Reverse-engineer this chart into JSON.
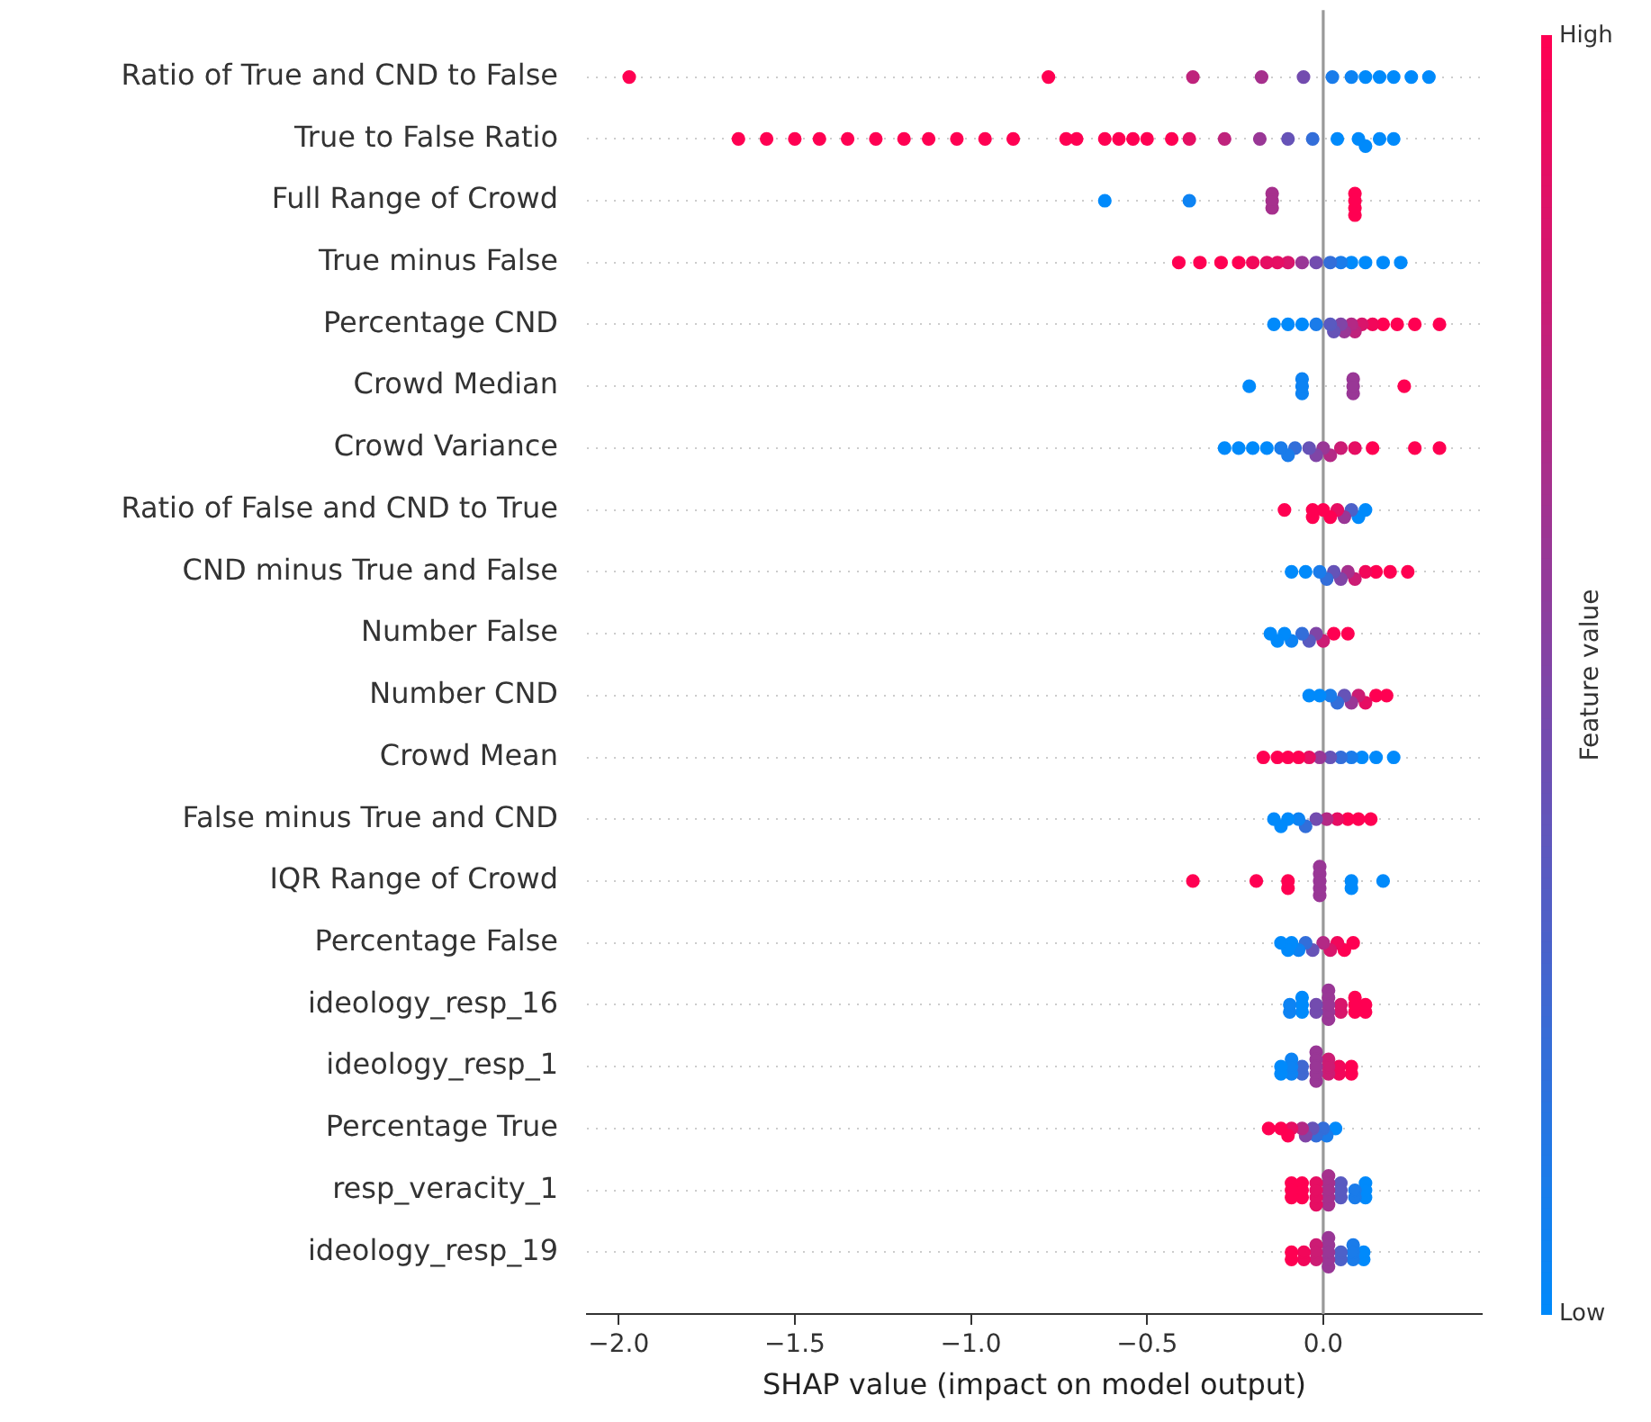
{
  "chart_data": {
    "type": "scatter",
    "orientation": "horizontal",
    "marker": "circle",
    "grid": "y",
    "legend": false,
    "categories": [
      "Ratio of True and CND to False",
      "True to False Ratio",
      "Full Range of Crowd",
      "True minus False",
      "Percentage CND",
      "Crowd Median",
      "Crowd Variance",
      "Ratio of False and CND to True",
      "CND minus True and False",
      "Number False",
      "Number CND",
      "Crowd Mean",
      "False minus True and CND",
      "IQR Range of Crowd",
      "Percentage False",
      "ideology_resp_16",
      "ideology_resp_1",
      "Percentage True",
      "resp_veracity_1",
      "ideology_resp_19"
    ],
    "xlabel": "SHAP value (impact on model output)",
    "clabel": "Feature value",
    "xlim": [
      -2.09,
      0.45
    ],
    "xticks": [
      {
        "value": -2,
        "label": "−2.0"
      },
      {
        "value": -1.5,
        "label": "−1.5"
      },
      {
        "value": -1,
        "label": "−1.0"
      },
      {
        "value": -0.5,
        "label": "−0.5"
      },
      {
        "value": 0,
        "label": "0.0"
      }
    ],
    "clim": [
      0,
      1
    ],
    "cticks": [
      {
        "value": 0,
        "label": "Low"
      },
      {
        "value": 1,
        "label": "High"
      }
    ],
    "ref_lines": [
      {
        "axis": "x",
        "value": 0,
        "color": "#999999"
      }
    ],
    "series": [
      {
        "values": [
          -1.97,
          -1.66,
          -0.62,
          -0.41,
          -0.14,
          -0.21,
          -0.28,
          -0.11,
          -0.09,
          -0.15,
          -0.04,
          -0.17,
          -0.14,
          -0.37,
          -0.12,
          -0.095,
          -0.12,
          -0.155,
          -0.09,
          -0.09
        ],
        "cvalues": [
          1,
          1,
          0,
          1,
          0,
          0,
          0,
          1,
          0,
          0,
          0,
          1,
          0,
          1,
          0,
          0.05,
          0,
          1,
          1,
          1
        ],
        "colors": [
          "#ff0052",
          "#ff0052",
          "#008afb",
          "#ff0052",
          "#008afb",
          "#008afb",
          "#008afb",
          "#ff0052",
          "#008afb",
          "#008afb",
          "#008afb",
          "#ff0052",
          "#008afb",
          "#ff0052",
          "#008afb",
          "#0d83f3",
          "#008afb",
          "#ff0052",
          "#ff0052",
          "#ff0052"
        ]
      },
      {
        "values": [
          -0.78,
          -1.58,
          -0.38,
          -0.35,
          -0.1,
          -0.06,
          -0.24,
          -0.03,
          -0.05,
          -0.13,
          -0.01,
          -0.13,
          -0.12,
          -0.19,
          -0.1,
          -0.095,
          -0.12,
          -0.12,
          -0.09,
          -0.09
        ],
        "cvalues": [
          1,
          1,
          0.05,
          1,
          0,
          0.05,
          0,
          1,
          0,
          0,
          0,
          1,
          0,
          1,
          0,
          0.05,
          0,
          1,
          1,
          1
        ],
        "colors": [
          "#ff0052",
          "#ff0052",
          "#0d83f3",
          "#ff0052",
          "#008afb",
          "#0d83f3",
          "#008afb",
          "#ff0052",
          "#008afb",
          "#008afb",
          "#008afb",
          "#ff0052",
          "#008afb",
          "#ff0052",
          "#008afb",
          "#0d83f3",
          "#008afb",
          "#ff0052",
          "#ff0052",
          "#ff0052"
        ]
      },
      {
        "values": [
          -0.37,
          -1.5,
          -0.145,
          -0.29,
          -0.06,
          -0.06,
          -0.2,
          -0.03,
          -0.01,
          -0.11,
          0.02,
          -0.1,
          -0.1,
          -0.1,
          -0.09,
          -0.06,
          -0.09,
          -0.1,
          -0.09,
          -0.055
        ],
        "cvalues": [
          0.75,
          1,
          0.65,
          1,
          0,
          0.05,
          0,
          1,
          0.1,
          0,
          0.1,
          1,
          0,
          1,
          0,
          0,
          0.05,
          1,
          1,
          0.95
        ],
        "colors": [
          "#bf237c",
          "#ff0052",
          "#a6308d",
          "#ff0052",
          "#008afb",
          "#0d83f3",
          "#008afb",
          "#ff0052",
          "#1a7cea",
          "#008afb",
          "#1a7cea",
          "#ff0052",
          "#008afb",
          "#ff0052",
          "#008afb",
          "#008afb",
          "#0d83f3",
          "#ff0052",
          "#ff0052",
          "#f2075a"
        ]
      },
      {
        "values": [
          -0.175,
          -1.43,
          -0.145,
          -0.24,
          -0.02,
          -0.06,
          -0.16,
          0,
          0.01,
          -0.09,
          0.04,
          -0.07,
          -0.07,
          -0.1,
          -0.07,
          -0.06,
          -0.09,
          -0.09,
          -0.06,
          -0.055
        ],
        "cvalues": [
          0.65,
          1,
          0.65,
          1,
          0.1,
          0.05,
          0,
          1,
          0.2,
          0.05,
          0.2,
          1,
          0.05,
          1,
          0.05,
          0,
          0.05,
          0.9,
          1,
          0.95
        ],
        "colors": [
          "#a6308d",
          "#ff0052",
          "#a6308d",
          "#ff0052",
          "#1a7cea",
          "#0d83f3",
          "#008afb",
          "#ff0052",
          "#336ed9",
          "#0d83f3",
          "#336ed9",
          "#ff0052",
          "#0d83f3",
          "#ff0052",
          "#0d83f3",
          "#008afb",
          "#0d83f3",
          "#e60e63",
          "#ff0052",
          "#f2075a"
        ]
      },
      {
        "values": [
          -0.056,
          -1.35,
          -0.145,
          -0.2,
          0.02,
          0.085,
          -0.12,
          0.02,
          0.03,
          -0.06,
          0.06,
          -0.04,
          -0.05,
          -0.01,
          -0.05,
          -0.06,
          -0.09,
          -0.06,
          -0.06,
          -0.02
        ],
        "cvalues": [
          0.45,
          1,
          0.65,
          0.95,
          0.35,
          0.6,
          0.1,
          1,
          0.4,
          0.2,
          0.4,
          0.9,
          0.2,
          0.6,
          0.2,
          0,
          0.05,
          0.7,
          1,
          0.8
        ],
        "colors": [
          "#734caf",
          "#ff0052",
          "#a6308d",
          "#f2075a",
          "#595ac0",
          "#993796",
          "#1a7cea",
          "#ff0052",
          "#6653b7",
          "#336ed9",
          "#6653b7",
          "#e60e63",
          "#336ed9",
          "#993796",
          "#336ed9",
          "#008afb",
          "#0d83f3",
          "#b32985",
          "#ff0052",
          "#cc1c74"
        ]
      },
      {
        "values": [
          0.026,
          -1.27,
          0.09,
          -0.16,
          0.03,
          0.085,
          -0.1,
          0.04,
          0.05,
          -0.04,
          0.08,
          -0.01,
          -0.02,
          -0.01,
          -0.03,
          -0.02,
          -0.06,
          -0.05,
          -0.06,
          -0.02
        ],
        "cvalues": [
          0.1,
          1,
          1,
          0.9,
          0.4,
          0.6,
          0.1,
          0.9,
          0.5,
          0.35,
          0.6,
          0.6,
          0.45,
          0.6,
          0.4,
          0.45,
          0.25,
          0.5,
          1,
          0.8
        ],
        "colors": [
          "#1a7cea",
          "#ff0052",
          "#ff0052",
          "#e60e63",
          "#6653b7",
          "#993796",
          "#1a7cea",
          "#e60e63",
          "#8045a6",
          "#595ac0",
          "#993796",
          "#993796",
          "#734caf",
          "#993796",
          "#6653b7",
          "#734caf",
          "#4068d1",
          "#8045a6",
          "#ff0052",
          "#cc1c74"
        ]
      },
      {
        "values": [
          0.08,
          -1.19,
          0.09,
          -0.13,
          0.05,
          0.085,
          -0.08,
          0.06,
          0.07,
          -0.02,
          0.1,
          0.02,
          0.01,
          -0.01,
          0,
          -0.02,
          -0.06,
          -0.03,
          -0.02,
          -0.02
        ],
        "cvalues": [
          0.05,
          1,
          1,
          0.9,
          0.5,
          0.6,
          0.2,
          0.6,
          0.65,
          0.5,
          0.8,
          0.4,
          0.7,
          0.6,
          0.7,
          0.45,
          0.25,
          0.4,
          0.9,
          0.8
        ],
        "colors": [
          "#0d83f3",
          "#ff0052",
          "#ff0052",
          "#e60e63",
          "#8045a6",
          "#993796",
          "#336ed9",
          "#993796",
          "#a6308d",
          "#8045a6",
          "#cc1c74",
          "#6653b7",
          "#b32985",
          "#993796",
          "#b32985",
          "#734caf",
          "#4068d1",
          "#6653b7",
          "#e60e63",
          "#cc1c74"
        ]
      },
      {
        "values": [
          0.12,
          -1.12,
          0.09,
          -0.1,
          0.06,
          0.23,
          -0.04,
          0.08,
          0.09,
          0,
          0.12,
          0.05,
          0.04,
          -0.01,
          0.02,
          0.015,
          -0.02,
          -0.02,
          -0.02,
          0.015
        ],
        "cvalues": [
          0,
          1,
          1,
          0.85,
          0.6,
          1,
          0.4,
          0.3,
          0.8,
          0.8,
          0.9,
          0.2,
          0.9,
          0.6,
          0.85,
          0.6,
          0.6,
          0.2,
          0.9,
          0.6
        ],
        "colors": [
          "#008afb",
          "#ff0052",
          "#ff0052",
          "#d9156b",
          "#993796",
          "#ff0052",
          "#6653b7",
          "#4d61c8",
          "#cc1c74",
          "#cc1c74",
          "#e60e63",
          "#336ed9",
          "#e60e63",
          "#993796",
          "#d9156b",
          "#993796",
          "#993796",
          "#336ed9",
          "#e60e63",
          "#993796"
        ]
      },
      {
        "values": [
          0.16,
          -1.04,
          0.09,
          -0.06,
          0.08,
          null,
          -0.02,
          0.1,
          0.12,
          0.03,
          0.15,
          0.08,
          0.07,
          -0.01,
          0.04,
          0.015,
          -0.02,
          0,
          -0.02,
          0.015
        ],
        "cvalues": [
          0,
          1,
          1,
          0.6,
          0.7,
          null,
          0.5,
          0,
          0.95,
          1,
          1,
          0.1,
          1,
          0.6,
          0.95,
          0.6,
          0.6,
          0.2,
          0.9,
          0.6
        ],
        "colors": [
          "#008afb",
          "#ff0052",
          "#ff0052",
          "#993796",
          "#b32985",
          null,
          "#8045a6",
          "#008afb",
          "#f2075a",
          "#ff0052",
          "#ff0052",
          "#1a7cea",
          "#ff0052",
          "#993796",
          "#f2075a",
          "#993796",
          "#993796",
          "#336ed9",
          "#e60e63",
          "#993796"
        ]
      },
      {
        "values": [
          0.2,
          -0.96,
          null,
          -0.02,
          0.09,
          null,
          0,
          0.12,
          0.15,
          0.07,
          0.18,
          0.11,
          0.1,
          0.08,
          0.06,
          0.015,
          -0.02,
          0.01,
          -0.02,
          0.015
        ],
        "cvalues": [
          0,
          1,
          null,
          0.45,
          0.75,
          null,
          0.6,
          0,
          1,
          1,
          1,
          0,
          1,
          0,
          1,
          0.6,
          0.6,
          0.1,
          0.9,
          0.6
        ],
        "colors": [
          "#008afb",
          "#ff0052",
          null,
          "#734caf",
          "#bf237c",
          null,
          "#993796",
          "#008afb",
          "#ff0052",
          "#ff0052",
          "#ff0052",
          "#008afb",
          "#ff0052",
          "#008afb",
          "#ff0052",
          "#993796",
          "#993796",
          "#1a7cea",
          "#e60e63",
          "#993796"
        ]
      },
      {
        "values": [
          0.25,
          -0.88,
          null,
          0.02,
          0.11,
          null,
          0.02,
          null,
          0.19,
          null,
          null,
          0.15,
          0.135,
          0.08,
          0.085,
          0.015,
          -0.02,
          0.035,
          0.015,
          0.015
        ],
        "cvalues": [
          0,
          1,
          null,
          0.2,
          0.85,
          null,
          0.7,
          null,
          1,
          null,
          null,
          0,
          1,
          0,
          1,
          0.6,
          0.6,
          0,
          0.65,
          0.6
        ],
        "colors": [
          "#008afb",
          "#ff0052",
          null,
          "#336ed9",
          "#d9156b",
          null,
          "#b32985",
          null,
          "#ff0052",
          null,
          null,
          "#008afb",
          "#ff0052",
          "#008afb",
          "#ff0052",
          "#993796",
          "#993796",
          "#008afb",
          "#a6308d",
          "#993796"
        ]
      },
      {
        "values": [
          0.3,
          -0.73,
          null,
          0.05,
          0.14,
          null,
          0.05,
          null,
          0.24,
          null,
          null,
          0.2,
          null,
          0.17,
          null,
          0.015,
          -0.02,
          null,
          0.015,
          0.015
        ],
        "cvalues": [
          0,
          1,
          null,
          0.1,
          0.95,
          null,
          0.8,
          null,
          1,
          null,
          null,
          0,
          null,
          0,
          null,
          0.6,
          0.6,
          null,
          0.65,
          0.6
        ],
        "colors": [
          "#008afb",
          "#ff0052",
          null,
          "#1a7cea",
          "#f2075a",
          null,
          "#cc1c74",
          null,
          "#ff0052",
          null,
          null,
          "#008afb",
          null,
          "#008afb",
          null,
          "#993796",
          "#993796",
          null,
          "#a6308d",
          "#993796"
        ]
      },
      {
        "values": [
          null,
          -0.7,
          null,
          0.08,
          0.17,
          null,
          0.09,
          null,
          null,
          null,
          null,
          null,
          null,
          null,
          null,
          0.05,
          0.015,
          null,
          0.015,
          0.05
        ],
        "cvalues": [
          null,
          1,
          null,
          0,
          1,
          null,
          0.9,
          null,
          null,
          null,
          null,
          null,
          null,
          null,
          null,
          0.85,
          0.8,
          null,
          0.65,
          0.3
        ],
        "colors": [
          null,
          "#ff0052",
          null,
          "#008afb",
          "#ff0052",
          null,
          "#e60e63",
          null,
          null,
          null,
          null,
          null,
          null,
          null,
          null,
          "#d9156b",
          "#cc1c74",
          null,
          "#a6308d",
          "#4d61c8"
        ]
      },
      {
        "values": [
          null,
          -0.62,
          null,
          0.12,
          0.21,
          null,
          0.14,
          null,
          null,
          null,
          null,
          null,
          null,
          null,
          null,
          0.05,
          0.015,
          null,
          0.015,
          0.05
        ],
        "cvalues": [
          null,
          1,
          null,
          0,
          1,
          null,
          1,
          null,
          null,
          null,
          null,
          null,
          null,
          null,
          null,
          0.85,
          0.8,
          null,
          0.65,
          0.3
        ],
        "colors": [
          null,
          "#ff0052",
          null,
          "#008afb",
          "#ff0052",
          null,
          "#ff0052",
          null,
          null,
          null,
          null,
          null,
          null,
          null,
          null,
          "#d9156b",
          "#cc1c74",
          null,
          "#a6308d",
          "#4d61c8"
        ]
      },
      {
        "values": [
          null,
          -0.58,
          null,
          0.17,
          0.26,
          null,
          0.26,
          null,
          null,
          null,
          null,
          null,
          null,
          null,
          null,
          0.09,
          0.015,
          null,
          0.015,
          0.085
        ],
        "cvalues": [
          null,
          1,
          null,
          0,
          1,
          null,
          1,
          null,
          null,
          null,
          null,
          null,
          null,
          null,
          null,
          1,
          0.8,
          null,
          0.65,
          0.1
        ],
        "colors": [
          null,
          "#ff0052",
          null,
          "#008afb",
          "#ff0052",
          null,
          "#ff0052",
          null,
          null,
          null,
          null,
          null,
          null,
          null,
          null,
          "#ff0052",
          "#cc1c74",
          null,
          "#a6308d",
          "#1a7cea"
        ]
      },
      {
        "values": [
          null,
          -0.54,
          null,
          0.22,
          0.33,
          null,
          0.33,
          null,
          null,
          null,
          null,
          null,
          null,
          null,
          null,
          0.09,
          0.045,
          null,
          0.05,
          0.085
        ],
        "cvalues": [
          null,
          1,
          null,
          0,
          1,
          null,
          1,
          null,
          null,
          null,
          null,
          null,
          null,
          null,
          null,
          1,
          0.95,
          null,
          0.35,
          0.1
        ],
        "colors": [
          null,
          "#ff0052",
          null,
          "#008afb",
          "#ff0052",
          null,
          "#ff0052",
          null,
          null,
          null,
          null,
          null,
          null,
          null,
          null,
          "#ff0052",
          "#f2075a",
          null,
          "#595ac0",
          "#1a7cea"
        ]
      },
      {
        "values": [
          null,
          -0.5,
          null,
          null,
          null,
          null,
          null,
          null,
          null,
          null,
          null,
          null,
          null,
          null,
          null,
          0.09,
          0.045,
          null,
          0.05,
          0.085
        ],
        "cvalues": [
          null,
          1,
          null,
          null,
          null,
          null,
          null,
          null,
          null,
          null,
          null,
          null,
          null,
          null,
          null,
          1,
          0.95,
          null,
          0.35,
          0.1
        ],
        "colors": [
          null,
          "#ff0052",
          null,
          null,
          null,
          null,
          null,
          null,
          null,
          null,
          null,
          null,
          null,
          null,
          null,
          "#ff0052",
          "#f2075a",
          null,
          "#595ac0",
          "#1a7cea"
        ]
      },
      {
        "values": [
          null,
          -0.43,
          null,
          null,
          null,
          null,
          null,
          null,
          null,
          null,
          null,
          null,
          null,
          null,
          null,
          0.12,
          0.08,
          null,
          0.05,
          0.115
        ],
        "cvalues": [
          null,
          1,
          null,
          null,
          null,
          null,
          null,
          null,
          null,
          null,
          null,
          null,
          null,
          null,
          null,
          1,
          1,
          null,
          0.35,
          0
        ],
        "colors": [
          null,
          "#ff0052",
          null,
          null,
          null,
          null,
          null,
          null,
          null,
          null,
          null,
          null,
          null,
          null,
          null,
          "#ff0052",
          "#ff0052",
          null,
          "#595ac0",
          "#008afb"
        ]
      },
      {
        "values": [
          null,
          -0.38,
          null,
          null,
          null,
          null,
          null,
          null,
          null,
          null,
          null,
          null,
          null,
          null,
          null,
          0.12,
          0.08,
          null,
          0.09,
          0.115
        ],
        "cvalues": [
          null,
          0.9,
          null,
          null,
          null,
          null,
          null,
          null,
          null,
          null,
          null,
          null,
          null,
          null,
          null,
          1,
          1,
          null,
          0.1,
          0
        ],
        "colors": [
          null,
          "#e60e63",
          null,
          null,
          null,
          null,
          null,
          null,
          null,
          null,
          null,
          null,
          null,
          null,
          null,
          "#ff0052",
          "#ff0052",
          null,
          "#1a7cea",
          "#008afb"
        ]
      },
      {
        "values": [
          null,
          -0.28,
          null,
          null,
          null,
          null,
          null,
          null,
          null,
          null,
          null,
          null,
          null,
          null,
          null,
          null,
          null,
          null,
          0.09,
          null
        ],
        "cvalues": [
          null,
          0.75,
          null,
          null,
          null,
          null,
          null,
          null,
          null,
          null,
          null,
          null,
          null,
          null,
          null,
          null,
          null,
          null,
          0.1,
          null
        ],
        "colors": [
          null,
          "#bf237c",
          null,
          null,
          null,
          null,
          null,
          null,
          null,
          null,
          null,
          null,
          null,
          null,
          null,
          null,
          null,
          null,
          "#1a7cea",
          null
        ]
      },
      {
        "values": [
          null,
          -0.18,
          null,
          null,
          null,
          null,
          null,
          null,
          null,
          null,
          null,
          null,
          null,
          null,
          null,
          null,
          null,
          null,
          0.12,
          null
        ],
        "cvalues": [
          null,
          0.6,
          null,
          null,
          null,
          null,
          null,
          null,
          null,
          null,
          null,
          null,
          null,
          null,
          null,
          null,
          null,
          null,
          0,
          null
        ],
        "colors": [
          null,
          "#993796",
          null,
          null,
          null,
          null,
          null,
          null,
          null,
          null,
          null,
          null,
          null,
          null,
          null,
          null,
          null,
          null,
          "#008afb",
          null
        ]
      },
      {
        "values": [
          null,
          -0.1,
          null,
          null,
          null,
          null,
          null,
          null,
          null,
          null,
          null,
          null,
          null,
          null,
          null,
          null,
          null,
          null,
          0.12,
          null
        ],
        "cvalues": [
          null,
          0.4,
          null,
          null,
          null,
          null,
          null,
          null,
          null,
          null,
          null,
          null,
          null,
          null,
          null,
          null,
          null,
          null,
          0,
          null
        ],
        "colors": [
          null,
          "#6653b7",
          null,
          null,
          null,
          null,
          null,
          null,
          null,
          null,
          null,
          null,
          null,
          null,
          null,
          null,
          null,
          null,
          "#008afb",
          null
        ]
      },
      {
        "values": [
          null,
          -0.03,
          null,
          null,
          null,
          null,
          null,
          null,
          null,
          null,
          null,
          null,
          null,
          null,
          null,
          null,
          null,
          null,
          0.12,
          null
        ],
        "cvalues": [
          null,
          0.2,
          null,
          null,
          null,
          null,
          null,
          null,
          null,
          null,
          null,
          null,
          null,
          null,
          null,
          null,
          null,
          null,
          0,
          null
        ],
        "colors": [
          null,
          "#336ed9",
          null,
          null,
          null,
          null,
          null,
          null,
          null,
          null,
          null,
          null,
          null,
          null,
          null,
          null,
          null,
          null,
          "#008afb",
          null
        ]
      },
      {
        "values": [
          null,
          0.04,
          null,
          null,
          null,
          null,
          null,
          null,
          null,
          null,
          null,
          null,
          null,
          null,
          null,
          null,
          null,
          null,
          null,
          null
        ],
        "cvalues": [
          null,
          0,
          null,
          null,
          null,
          null,
          null,
          null,
          null,
          null,
          null,
          null,
          null,
          null,
          null,
          null,
          null,
          null,
          null,
          null
        ],
        "colors": [
          null,
          "#008afb",
          null,
          null,
          null,
          null,
          null,
          null,
          null,
          null,
          null,
          null,
          null,
          null,
          null,
          null,
          null,
          null,
          null,
          null
        ]
      },
      {
        "values": [
          null,
          0.1,
          null,
          null,
          null,
          null,
          null,
          null,
          null,
          null,
          null,
          null,
          null,
          null,
          null,
          null,
          null,
          null,
          null,
          null
        ],
        "cvalues": [
          null,
          0,
          null,
          null,
          null,
          null,
          null,
          null,
          null,
          null,
          null,
          null,
          null,
          null,
          null,
          null,
          null,
          null,
          null,
          null
        ],
        "colors": [
          null,
          "#008afb",
          null,
          null,
          null,
          null,
          null,
          null,
          null,
          null,
          null,
          null,
          null,
          null,
          null,
          null,
          null,
          null,
          null,
          null
        ]
      },
      {
        "values": [
          null,
          0.12,
          null,
          null,
          null,
          null,
          null,
          null,
          null,
          null,
          null,
          null,
          null,
          null,
          null,
          null,
          null,
          null,
          null,
          null
        ],
        "cvalues": [
          null,
          0,
          null,
          null,
          null,
          null,
          null,
          null,
          null,
          null,
          null,
          null,
          null,
          null,
          null,
          null,
          null,
          null,
          null,
          null
        ],
        "colors": [
          null,
          "#008afb",
          null,
          null,
          null,
          null,
          null,
          null,
          null,
          null,
          null,
          null,
          null,
          null,
          null,
          null,
          null,
          null,
          null,
          null
        ]
      },
      {
        "values": [
          null,
          0.16,
          null,
          null,
          null,
          null,
          null,
          null,
          null,
          null,
          null,
          null,
          null,
          null,
          null,
          null,
          null,
          null,
          null,
          null
        ],
        "cvalues": [
          null,
          0,
          null,
          null,
          null,
          null,
          null,
          null,
          null,
          null,
          null,
          null,
          null,
          null,
          null,
          null,
          null,
          null,
          null,
          null
        ],
        "colors": [
          null,
          "#008afb",
          null,
          null,
          null,
          null,
          null,
          null,
          null,
          null,
          null,
          null,
          null,
          null,
          null,
          null,
          null,
          null,
          null,
          null
        ]
      },
      {
        "values": [
          null,
          0.2,
          null,
          null,
          null,
          null,
          null,
          null,
          null,
          null,
          null,
          null,
          null,
          null,
          null,
          null,
          null,
          null,
          null,
          null
        ],
        "cvalues": [
          null,
          0,
          null,
          null,
          null,
          null,
          null,
          null,
          null,
          null,
          null,
          null,
          null,
          null,
          null,
          null,
          null,
          null,
          null,
          null
        ],
        "colors": [
          null,
          "#008afb",
          null,
          null,
          null,
          null,
          null,
          null,
          null,
          null,
          null,
          null,
          null,
          null,
          null,
          null,
          null,
          null,
          null,
          null
        ]
      }
    ]
  }
}
